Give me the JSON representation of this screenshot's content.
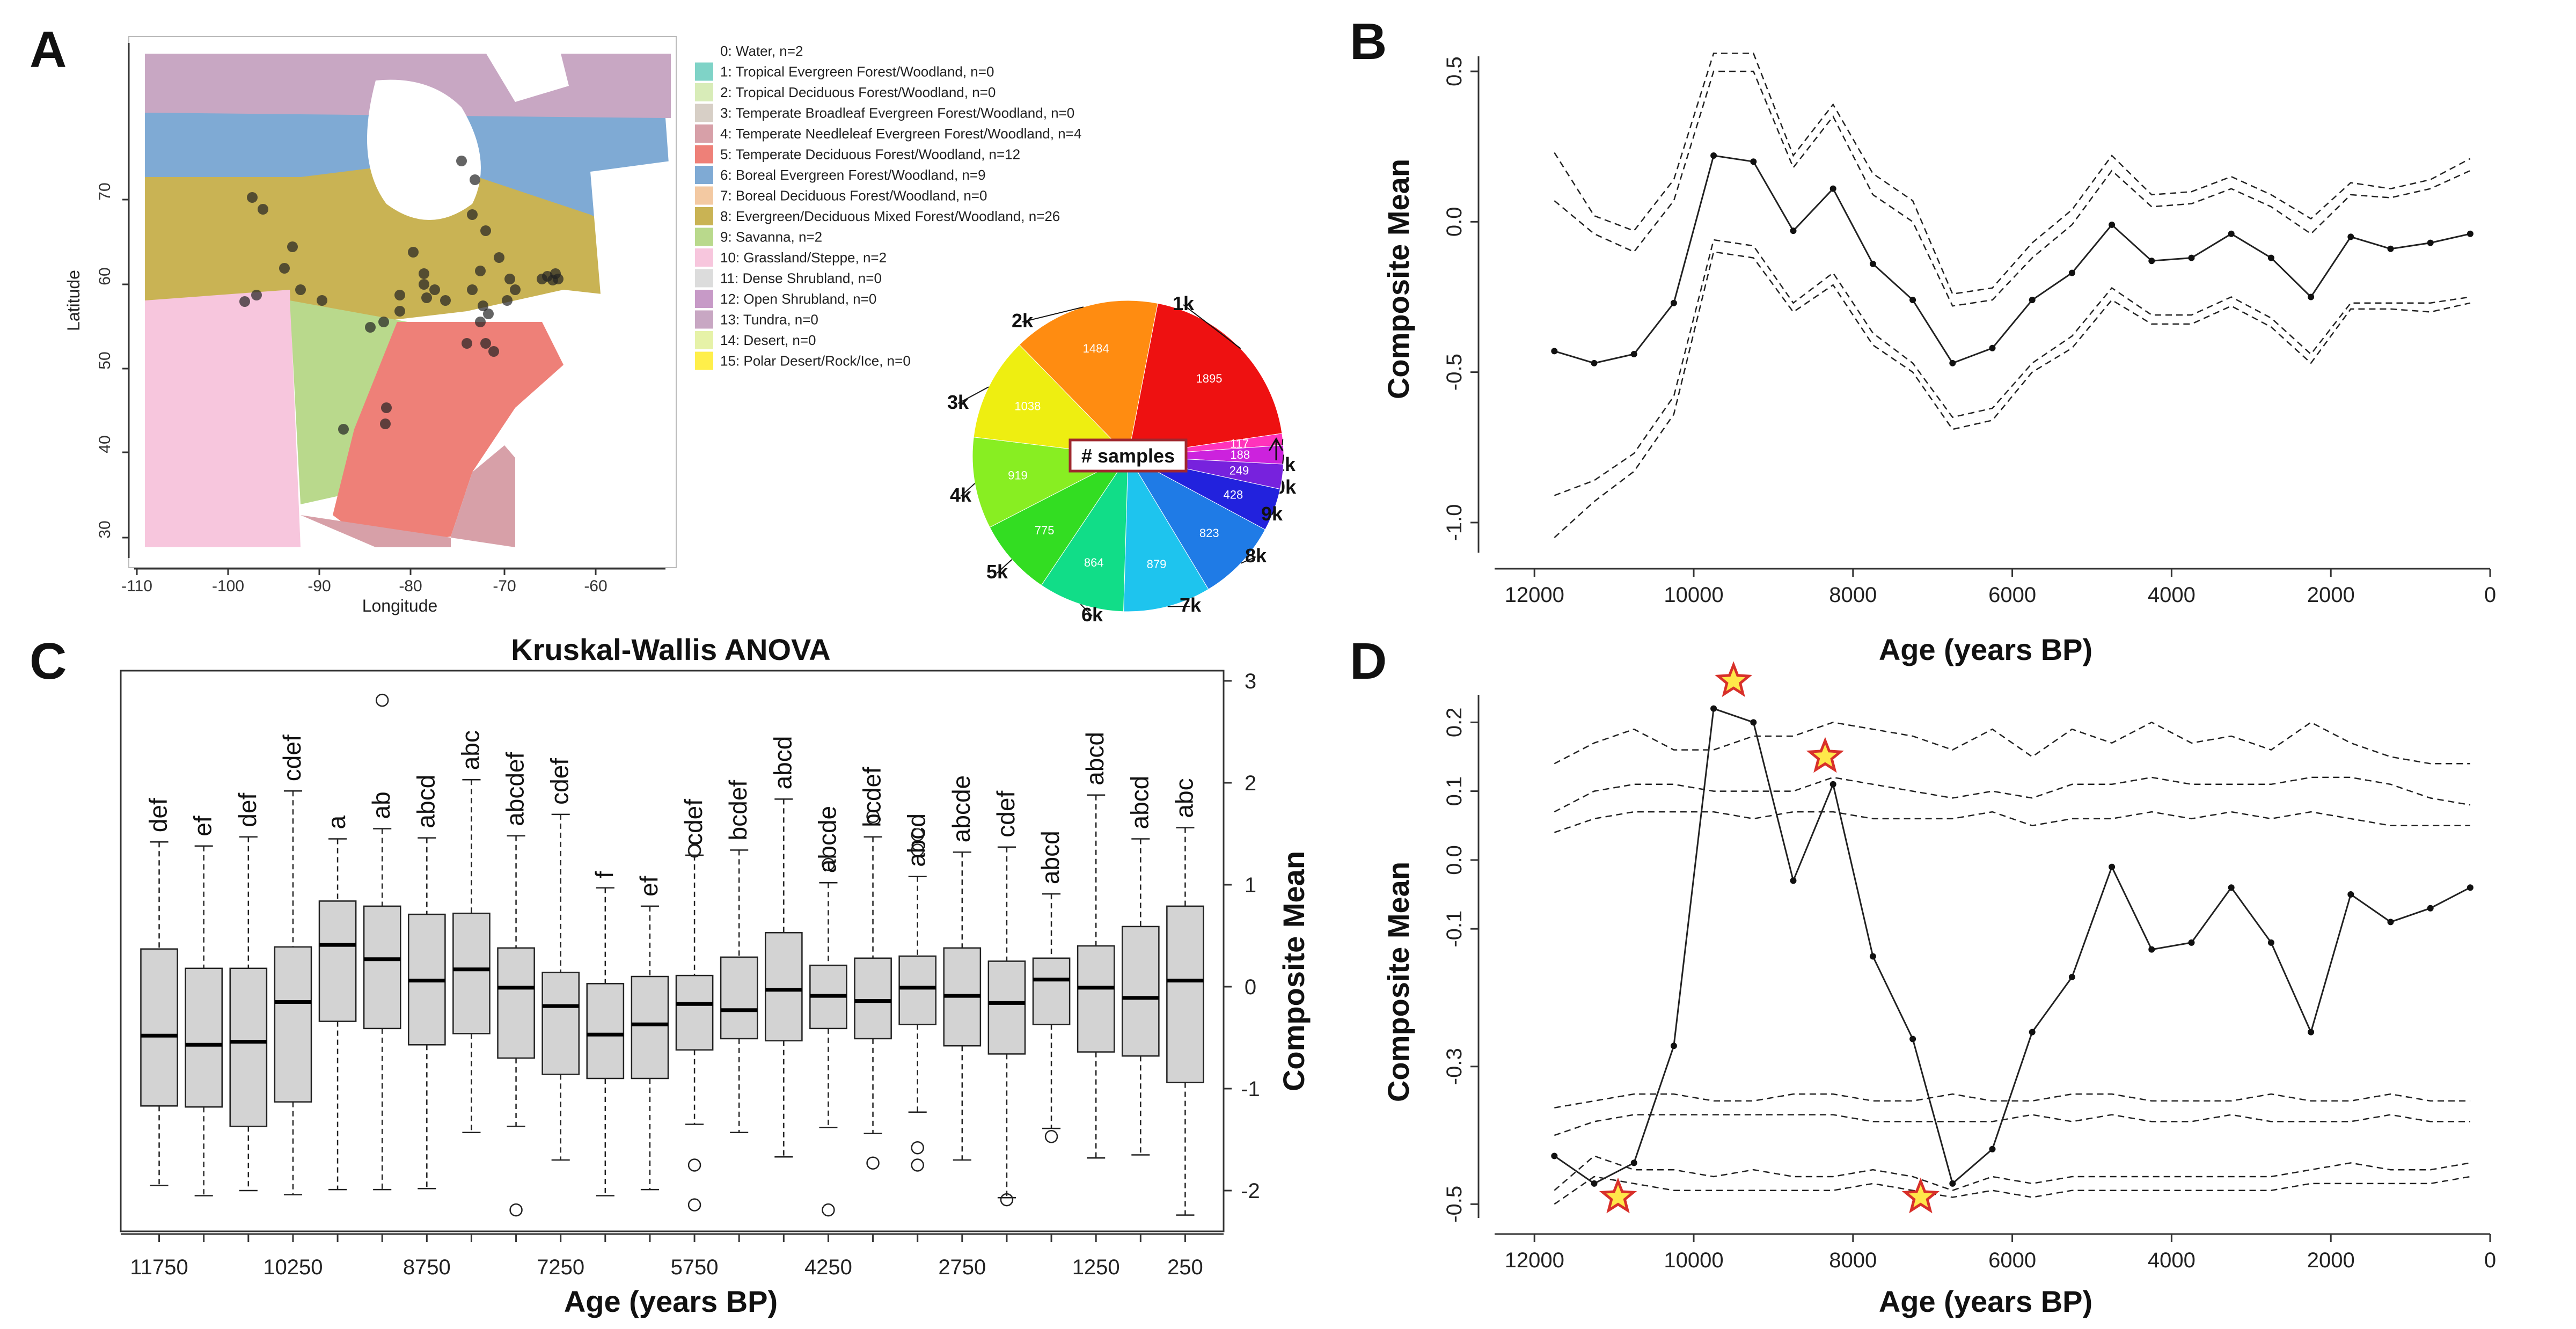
{
  "panels": {
    "a": {
      "letter": "A",
      "x_axis_title": "Longitude",
      "y_axis_title": "Latitude",
      "x_ticks": [
        "-110",
        "-100",
        "-90",
        "-80",
        "-70",
        "-60"
      ],
      "y_ticks": [
        "30",
        "40",
        "50",
        "60",
        "70"
      ],
      "legend": [
        {
          "label": "0: Water, n=2",
          "color": "#ffffff"
        },
        {
          "label": "1: Tropical Evergreen Forest/Woodland, n=0",
          "color": "#7fd3c7"
        },
        {
          "label": "2: Tropical Deciduous Forest/Woodland, n=0",
          "color": "#d8ecb8"
        },
        {
          "label": "3: Temperate Broadleaf Evergreen Forest/Woodland, n=0",
          "color": "#d7cfc6"
        },
        {
          "label": "4: Temperate Needleleaf Evergreen Forest/Woodland, n=4",
          "color": "#d7a0a8"
        },
        {
          "label": "5: Temperate Deciduous Forest/Woodland, n=12",
          "color": "#ee8078"
        },
        {
          "label": "6: Boreal Evergreen Forest/Woodland, n=9",
          "color": "#7faad4"
        },
        {
          "label": "7: Boreal Deciduous Forest/Woodland, n=0",
          "color": "#f3c9a2"
        },
        {
          "label": "8: Evergreen/Deciduous Mixed Forest/Woodland, n=26",
          "color": "#c9b354"
        },
        {
          "label": "9: Savanna, n=2",
          "color": "#b9d98c"
        },
        {
          "label": "10: Grassland/Steppe, n=2",
          "color": "#f7c6dd"
        },
        {
          "label": "11: Dense Shrubland, n=0",
          "color": "#dcdcdc"
        },
        {
          "label": "12: Open Shrubland, n=0",
          "color": "#c79ac7"
        },
        {
          "label": "13: Tundra, n=0",
          "color": "#c8a7c3"
        },
        {
          "label": "14: Desert, n=0",
          "color": "#e6f2a8"
        },
        {
          "label": "15: Polar Desert/Rock/Ice, n=0",
          "color": "#ffef4a"
        }
      ],
      "pie": {
        "center_label": "# samples",
        "slices": [
          {
            "label": "1k",
            "value": 1895,
            "color": "#ee1111"
          },
          {
            "label": "11k",
            "value": 117,
            "color": "#ff33bb"
          },
          {
            "label": "10k",
            "value": 188,
            "color": "#cc22dd"
          },
          {
            "label": "",
            "value": 249,
            "color": "#7722dd"
          },
          {
            "label": "9k",
            "value": 428,
            "color": "#2222dd"
          },
          {
            "label": "8k",
            "value": 823,
            "color": "#1f7be6"
          },
          {
            "label": "7k",
            "value": 879,
            "color": "#1ec4ee"
          },
          {
            "label": "6k",
            "value": 864,
            "color": "#11dd88"
          },
          {
            "label": "5k",
            "value": 775,
            "color": "#33dd22"
          },
          {
            "label": "4k",
            "value": 919,
            "color": "#88ee22"
          },
          {
            "label": "3k",
            "value": 1038,
            "color": "#eeee11"
          },
          {
            "label": "2k",
            "value": 1484,
            "color": "#ff8c11"
          }
        ],
        "value_labels": [
          "1895",
          "117",
          "188",
          "249",
          "428",
          "823",
          "879",
          "864",
          "775",
          "919",
          "1038",
          "1484"
        ]
      }
    },
    "b": {
      "letter": "B",
      "y_axis_title": "Composite Mean",
      "x_axis_title": "Age (years BP)",
      "x_ticks": [
        "12000",
        "10000",
        "8000",
        "6000",
        "4000",
        "2000",
        "0"
      ],
      "y_ticks": [
        "0.5",
        "0.0",
        "-0.5",
        "-1.0"
      ]
    },
    "c": {
      "letter": "C",
      "title": "Kruskal-Wallis ANOVA",
      "y_axis_title": "Composite Mean",
      "x_axis_title": "Age (years BP)",
      "x_tick_labels": [
        "11750",
        "10250",
        "8750",
        "7250",
        "5750",
        "4250",
        "2750",
        "1250",
        "250"
      ],
      "y_ticks": [
        "3",
        "2",
        "1",
        "0",
        "-1",
        "-2"
      ]
    },
    "d": {
      "letter": "D",
      "y_axis_title": "Composite Mean",
      "x_axis_title": "Age (years BP)",
      "x_ticks": [
        "12000",
        "10000",
        "8000",
        "6000",
        "4000",
        "2000",
        "0"
      ],
      "y_ticks": [
        "0.2",
        "0.1",
        "0.0",
        "-0.1",
        "-0.3",
        "-0.5"
      ]
    }
  },
  "chart_data": [
    {
      "type": "line",
      "panel": "B",
      "xlabel": "Age (years BP)",
      "ylabel": "Composite Mean",
      "xlim": [
        12500,
        0
      ],
      "ylim": [
        -1.1,
        0.55
      ],
      "x": [
        11750,
        11250,
        10750,
        10250,
        9750,
        9250,
        8750,
        8250,
        7750,
        7250,
        6750,
        6250,
        5750,
        5250,
        4750,
        4250,
        3750,
        3250,
        2750,
        2250,
        1750,
        1250,
        750,
        250
      ],
      "series": [
        {
          "values": [
            -0.43,
            -0.47,
            -0.44,
            -0.27,
            0.22,
            0.2,
            -0.03,
            0.11,
            -0.14,
            -0.26,
            -0.47,
            -0.42,
            -0.26,
            -0.17,
            -0.01,
            -0.13,
            -0.12,
            -0.04,
            -0.12,
            -0.25,
            -0.05,
            -0.09,
            -0.07,
            -0.04
          ],
          "style": "solid"
        },
        {
          "values": [
            0.23,
            0.02,
            -0.03,
            0.14,
            0.56,
            0.56,
            0.22,
            0.39,
            0.16,
            0.07,
            -0.24,
            -0.22,
            -0.07,
            0.04,
            0.22,
            0.09,
            0.1,
            0.15,
            0.09,
            0.01,
            0.13,
            0.11,
            0.14,
            0.21
          ],
          "style": "dashed"
        },
        {
          "values": [
            0.07,
            -0.04,
            -0.1,
            0.07,
            0.5,
            0.5,
            0.18,
            0.35,
            0.09,
            0.0,
            -0.28,
            -0.26,
            -0.12,
            -0.01,
            0.17,
            0.05,
            0.06,
            0.11,
            0.05,
            -0.04,
            0.09,
            0.08,
            0.11,
            0.17
          ],
          "style": "dashed"
        },
        {
          "values": [
            -0.91,
            -0.86,
            -0.77,
            -0.58,
            -0.06,
            -0.08,
            -0.27,
            -0.17,
            -0.37,
            -0.47,
            -0.65,
            -0.62,
            -0.47,
            -0.38,
            -0.22,
            -0.31,
            -0.31,
            -0.25,
            -0.32,
            -0.44,
            -0.27,
            -0.27,
            -0.27,
            -0.25
          ],
          "style": "dashed"
        },
        {
          "values": [
            -1.05,
            -0.93,
            -0.83,
            -0.64,
            -0.1,
            -0.12,
            -0.3,
            -0.21,
            -0.41,
            -0.5,
            -0.69,
            -0.66,
            -0.5,
            -0.42,
            -0.26,
            -0.34,
            -0.34,
            -0.28,
            -0.35,
            -0.47,
            -0.29,
            -0.29,
            -0.3,
            -0.27
          ],
          "style": "dashed"
        }
      ]
    },
    {
      "type": "box",
      "panel": "C",
      "title": "Kruskal-Wallis ANOVA",
      "xlabel": "Age (years BP)",
      "ylabel": "Composite Mean",
      "ylim": [
        -2.4,
        3.1
      ],
      "categories": [
        "11750",
        "11250",
        "10750",
        "10250",
        "9750",
        "9250",
        "8750",
        "8250",
        "7750",
        "7250",
        "6750",
        "6250",
        "5750",
        "5250",
        "4750",
        "4250",
        "3750",
        "3250",
        "2750",
        "2250",
        "1750",
        "1250",
        "750",
        "250"
      ],
      "groups": [
        "def",
        "ef",
        "def",
        "cdef",
        "a",
        "ab",
        "abcd",
        "abc",
        "abcdef",
        "cdef",
        "f",
        "ef",
        "cdef",
        "bcdef",
        "abcd",
        "abcde",
        "bcdef",
        "abcd",
        "abcde",
        "cdef",
        "abcd",
        "abcd",
        "abcd",
        "abc"
      ],
      "boxes": [
        {
          "min": -1.95,
          "q1": -1.17,
          "median": -0.48,
          "q3": 0.37,
          "max": 1.42,
          "outliers": []
        },
        {
          "min": -2.05,
          "q1": -1.18,
          "median": -0.57,
          "q3": 0.18,
          "max": 1.38,
          "outliers": []
        },
        {
          "min": -2.0,
          "q1": -1.37,
          "median": -0.54,
          "q3": 0.18,
          "max": 1.47,
          "outliers": []
        },
        {
          "min": -2.04,
          "q1": -1.13,
          "median": -0.15,
          "q3": 0.39,
          "max": 1.92,
          "outliers": []
        },
        {
          "min": -1.99,
          "q1": -0.34,
          "median": 0.41,
          "q3": 0.84,
          "max": 1.45,
          "outliers": []
        },
        {
          "min": -1.99,
          "q1": -0.41,
          "median": 0.27,
          "q3": 0.79,
          "max": 1.55,
          "outliers": [
            2.81
          ]
        },
        {
          "min": -1.98,
          "q1": -0.57,
          "median": 0.06,
          "q3": 0.71,
          "max": 1.46,
          "outliers": []
        },
        {
          "min": -1.43,
          "q1": -0.46,
          "median": 0.17,
          "q3": 0.72,
          "max": 2.03,
          "outliers": []
        },
        {
          "min": -1.37,
          "q1": -0.7,
          "median": -0.01,
          "q3": 0.38,
          "max": 1.48,
          "outliers": [
            -2.19
          ]
        },
        {
          "min": -1.7,
          "q1": -0.86,
          "median": -0.19,
          "q3": 0.14,
          "max": 1.69,
          "outliers": []
        },
        {
          "min": -2.05,
          "q1": -0.9,
          "median": -0.47,
          "q3": 0.03,
          "max": 0.97,
          "outliers": []
        },
        {
          "min": -1.99,
          "q1": -0.9,
          "median": -0.37,
          "q3": 0.1,
          "max": 0.79,
          "outliers": []
        },
        {
          "min": -1.35,
          "q1": -0.62,
          "median": -0.17,
          "q3": 0.11,
          "max": 1.29,
          "outliers": [
            1.34,
            1.33,
            -1.75,
            -2.14
          ]
        },
        {
          "min": -1.43,
          "q1": -0.51,
          "median": -0.23,
          "q3": 0.29,
          "max": 1.34,
          "outliers": []
        },
        {
          "min": -1.67,
          "q1": -0.53,
          "median": -0.03,
          "q3": 0.53,
          "max": 1.84,
          "outliers": []
        },
        {
          "min": -1.38,
          "q1": -0.41,
          "median": -0.09,
          "q3": 0.21,
          "max": 1.02,
          "outliers": [
            1.2,
            -2.19
          ]
        },
        {
          "min": -1.44,
          "q1": -0.51,
          "median": -0.14,
          "q3": 0.28,
          "max": 1.47,
          "outliers": [
            1.67,
            -1.73
          ]
        },
        {
          "min": -1.23,
          "q1": -0.37,
          "median": -0.01,
          "q3": 0.3,
          "max": 1.08,
          "outliers": [
            1.49,
            1.34,
            -1.58,
            -1.75
          ]
        },
        {
          "min": -1.7,
          "q1": -0.58,
          "median": -0.09,
          "q3": 0.38,
          "max": 1.32,
          "outliers": []
        },
        {
          "min": -2.07,
          "q1": -0.66,
          "median": -0.16,
          "q3": 0.25,
          "max": 1.37,
          "outliers": [
            -2.09
          ]
        },
        {
          "min": -1.39,
          "q1": -0.37,
          "median": 0.07,
          "q3": 0.28,
          "max": 0.91,
          "outliers": [
            -1.47
          ]
        },
        {
          "min": -1.68,
          "q1": -0.64,
          "median": -0.01,
          "q3": 0.4,
          "max": 1.88,
          "outliers": []
        },
        {
          "min": -1.65,
          "q1": -0.68,
          "median": -0.11,
          "q3": 0.59,
          "max": 1.45,
          "outliers": []
        },
        {
          "min": -2.24,
          "q1": -0.94,
          "median": 0.06,
          "q3": 0.79,
          "max": 1.56,
          "outliers": []
        }
      ]
    },
    {
      "type": "line",
      "panel": "D",
      "xlabel": "Age (years BP)",
      "ylabel": "Composite Mean",
      "xlim": [
        12500,
        0
      ],
      "ylim": [
        -0.52,
        0.24
      ],
      "x": [
        11750,
        11250,
        10750,
        10250,
        9750,
        9250,
        8750,
        8250,
        7750,
        7250,
        6750,
        6250,
        5750,
        5250,
        4750,
        4250,
        3750,
        3250,
        2750,
        2250,
        1750,
        1250,
        750,
        250
      ],
      "series": [
        {
          "values": [
            -0.43,
            -0.47,
            -0.44,
            -0.27,
            0.22,
            0.2,
            -0.03,
            0.11,
            -0.14,
            -0.26,
            -0.47,
            -0.42,
            -0.25,
            -0.17,
            -0.01,
            -0.13,
            -0.12,
            -0.04,
            -0.12,
            -0.25,
            -0.05,
            -0.09,
            -0.07,
            -0.04
          ],
          "style": "solid"
        },
        {
          "values": [
            0.14,
            0.17,
            0.19,
            0.16,
            0.16,
            0.18,
            0.18,
            0.2,
            0.19,
            0.18,
            0.16,
            0.19,
            0.15,
            0.19,
            0.17,
            0.2,
            0.17,
            0.18,
            0.16,
            0.2,
            0.17,
            0.15,
            0.14,
            0.14
          ],
          "style": "dashed"
        },
        {
          "values": [
            0.07,
            0.1,
            0.11,
            0.11,
            0.1,
            0.1,
            0.1,
            0.12,
            0.11,
            0.1,
            0.09,
            0.1,
            0.09,
            0.11,
            0.11,
            0.12,
            0.11,
            0.11,
            0.11,
            0.12,
            0.12,
            0.11,
            0.09,
            0.08
          ],
          "style": "dashed"
        },
        {
          "values": [
            0.04,
            0.06,
            0.07,
            0.07,
            0.07,
            0.06,
            0.07,
            0.07,
            0.06,
            0.06,
            0.06,
            0.07,
            0.05,
            0.06,
            0.06,
            0.07,
            0.06,
            0.07,
            0.06,
            0.07,
            0.06,
            0.05,
            0.05,
            0.05
          ],
          "style": "dashed"
        },
        {
          "values": [
            -0.36,
            -0.35,
            -0.34,
            -0.34,
            -0.35,
            -0.35,
            -0.34,
            -0.34,
            -0.35,
            -0.35,
            -0.34,
            -0.35,
            -0.35,
            -0.34,
            -0.34,
            -0.35,
            -0.35,
            -0.35,
            -0.34,
            -0.35,
            -0.35,
            -0.34,
            -0.35,
            -0.35
          ],
          "style": "dashed"
        },
        {
          "values": [
            -0.4,
            -0.38,
            -0.37,
            -0.37,
            -0.37,
            -0.37,
            -0.37,
            -0.37,
            -0.38,
            -0.38,
            -0.38,
            -0.38,
            -0.37,
            -0.38,
            -0.37,
            -0.38,
            -0.38,
            -0.37,
            -0.38,
            -0.38,
            -0.38,
            -0.37,
            -0.38,
            -0.38
          ],
          "style": "dashed"
        },
        {
          "values": [
            -0.48,
            -0.43,
            -0.45,
            -0.45,
            -0.46,
            -0.45,
            -0.46,
            -0.46,
            -0.45,
            -0.46,
            -0.48,
            -0.46,
            -0.47,
            -0.46,
            -0.46,
            -0.46,
            -0.46,
            -0.46,
            -0.46,
            -0.45,
            -0.44,
            -0.45,
            -0.45,
            -0.44
          ],
          "style": "dashed"
        },
        {
          "values": [
            -0.5,
            -0.46,
            -0.47,
            -0.48,
            -0.48,
            -0.48,
            -0.48,
            -0.48,
            -0.47,
            -0.48,
            -0.49,
            -0.48,
            -0.49,
            -0.48,
            -0.48,
            -0.48,
            -0.48,
            -0.48,
            -0.48,
            -0.47,
            -0.47,
            -0.47,
            -0.47,
            -0.46
          ],
          "style": "dashed"
        }
      ],
      "star_markers": [
        {
          "x": 9500,
          "y": 0.26
        },
        {
          "x": 8350,
          "y": 0.15
        },
        {
          "x": 10950,
          "y": -0.49
        },
        {
          "x": 7150,
          "y": -0.49
        }
      ]
    }
  ]
}
